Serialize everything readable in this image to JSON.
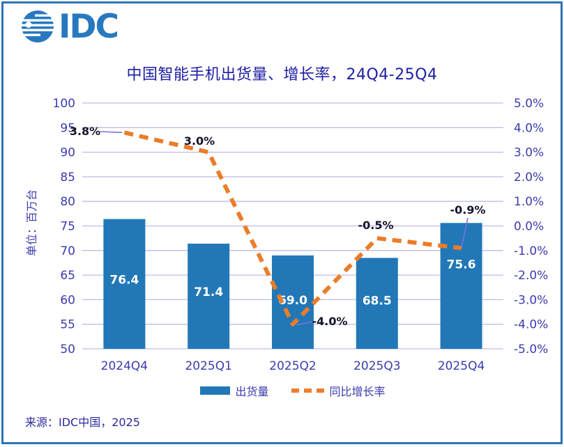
{
  "logo": {
    "text": "IDC"
  },
  "title": "中国智能手机出货量、增长率，24Q4-25Q4",
  "source": "来源：IDC中国，2025",
  "colors": {
    "frame": "#2E74B5",
    "logo": "#2878C0",
    "title": "#1D1DA5",
    "axis_text": "#3B3BB0",
    "gridline": "#BCBCEA",
    "bar": "#2278B7",
    "bar_label": "#FFFFFF",
    "line": "#EC7D28",
    "leader": "#7B6FE0",
    "data_label": "#14142A"
  },
  "chart_data": {
    "type": "bar+line combo",
    "title": "中国智能手机出货量、增长率，24Q4-25Q4",
    "categories": [
      "2024Q4",
      "2025Q1",
      "2025Q2",
      "2025Q3",
      "2025Q4"
    ],
    "series": [
      {
        "name": "出货量",
        "type": "bar",
        "axis": "left",
        "values": [
          76.4,
          71.4,
          69.0,
          68.5,
          75.6
        ],
        "value_labels": [
          "76.4",
          "71.4",
          "69.0",
          "68.5",
          "75.6"
        ]
      },
      {
        "name": "同比增长率",
        "type": "line",
        "style": "dashed",
        "axis": "right",
        "values": [
          3.8,
          3.0,
          -4.0,
          -0.5,
          -0.9
        ],
        "value_labels": [
          "3.8%",
          "3.0%",
          "-4.0%",
          "-0.5%",
          "-0.9%"
        ]
      }
    ],
    "left_axis": {
      "title": "单位：百万台",
      "min": 50,
      "max": 100,
      "step": 5,
      "ticks": [
        "100",
        "95",
        "90",
        "85",
        "80",
        "75",
        "70",
        "65",
        "60",
        "55",
        "50"
      ]
    },
    "right_axis": {
      "min": -5,
      "max": 5,
      "step": 1,
      "ticks": [
        "5.0%",
        "4.0%",
        "3.0%",
        "2.0%",
        "1.0%",
        "0.0%",
        "-1.0%",
        "-2.0%",
        "-3.0%",
        "-4.0%",
        "-5.0%"
      ]
    },
    "grid": "horizontal",
    "legend_position": "bottom",
    "legend": [
      {
        "label": "出货量",
        "marker": "bar"
      },
      {
        "label": "同比增长率",
        "marker": "dashed-line"
      }
    ]
  }
}
